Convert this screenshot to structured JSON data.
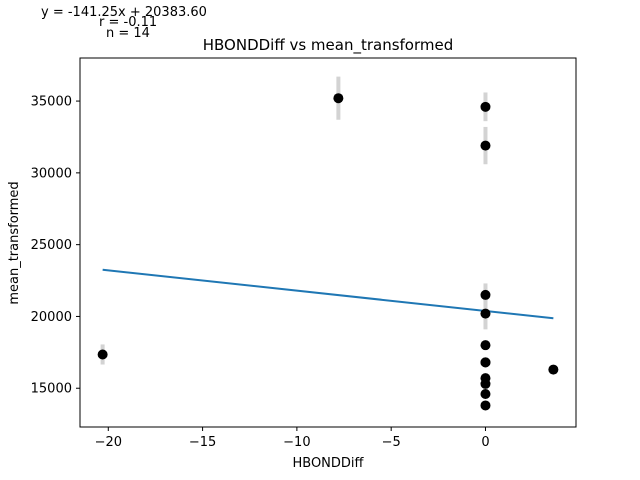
{
  "stats": {
    "equation": "y = -141.25x + 20383.60",
    "r": "r = -0.11",
    "n": "n = 14"
  },
  "chart_data": {
    "type": "scatter",
    "title": "HBONDDiff vs mean_transformed",
    "xlabel": "HBONDDiff",
    "ylabel": "mean_transformed",
    "xlim": [
      -21.5,
      4.8
    ],
    "ylim": [
      12300,
      38000
    ],
    "x_ticks": [
      -20,
      -15,
      -10,
      -5,
      0
    ],
    "x_tick_labels": [
      "−20",
      "−15",
      "−10",
      "−5",
      "0"
    ],
    "y_ticks": [
      15000,
      20000,
      25000,
      30000,
      35000
    ],
    "y_tick_labels": [
      "15000",
      "20000",
      "25000",
      "30000",
      "35000"
    ],
    "grid": false,
    "points": [
      {
        "x": -20.3,
        "y": 17350,
        "err": 700
      },
      {
        "x": -7.8,
        "y": 35200,
        "err": 1500
      },
      {
        "x": 0,
        "y": 34600,
        "err": 1000
      },
      {
        "x": 0,
        "y": 31900,
        "err": 1300
      },
      {
        "x": 0,
        "y": 21500,
        "err": 800
      },
      {
        "x": 0,
        "y": 20200,
        "err": 1100
      },
      {
        "x": 0,
        "y": 18000,
        "err": 300
      },
      {
        "x": 0,
        "y": 16800,
        "err": 300
      },
      {
        "x": 0,
        "y": 15700,
        "err": 300
      },
      {
        "x": 0,
        "y": 15300,
        "err": 300
      },
      {
        "x": 0,
        "y": 14600,
        "err": 300
      },
      {
        "x": 0,
        "y": 13800,
        "err": 300
      },
      {
        "x": 0,
        "y": 16800,
        "err": 200
      },
      {
        "x": 3.6,
        "y": 16300,
        "err": 200
      }
    ],
    "fit": {
      "slope": -141.25,
      "intercept": 20383.6,
      "x_range": [
        -20.3,
        3.6
      ]
    },
    "colors": {
      "points": "#000000",
      "error_bars": "#d3d3d3",
      "fit_line": "#1f77b4"
    }
  }
}
